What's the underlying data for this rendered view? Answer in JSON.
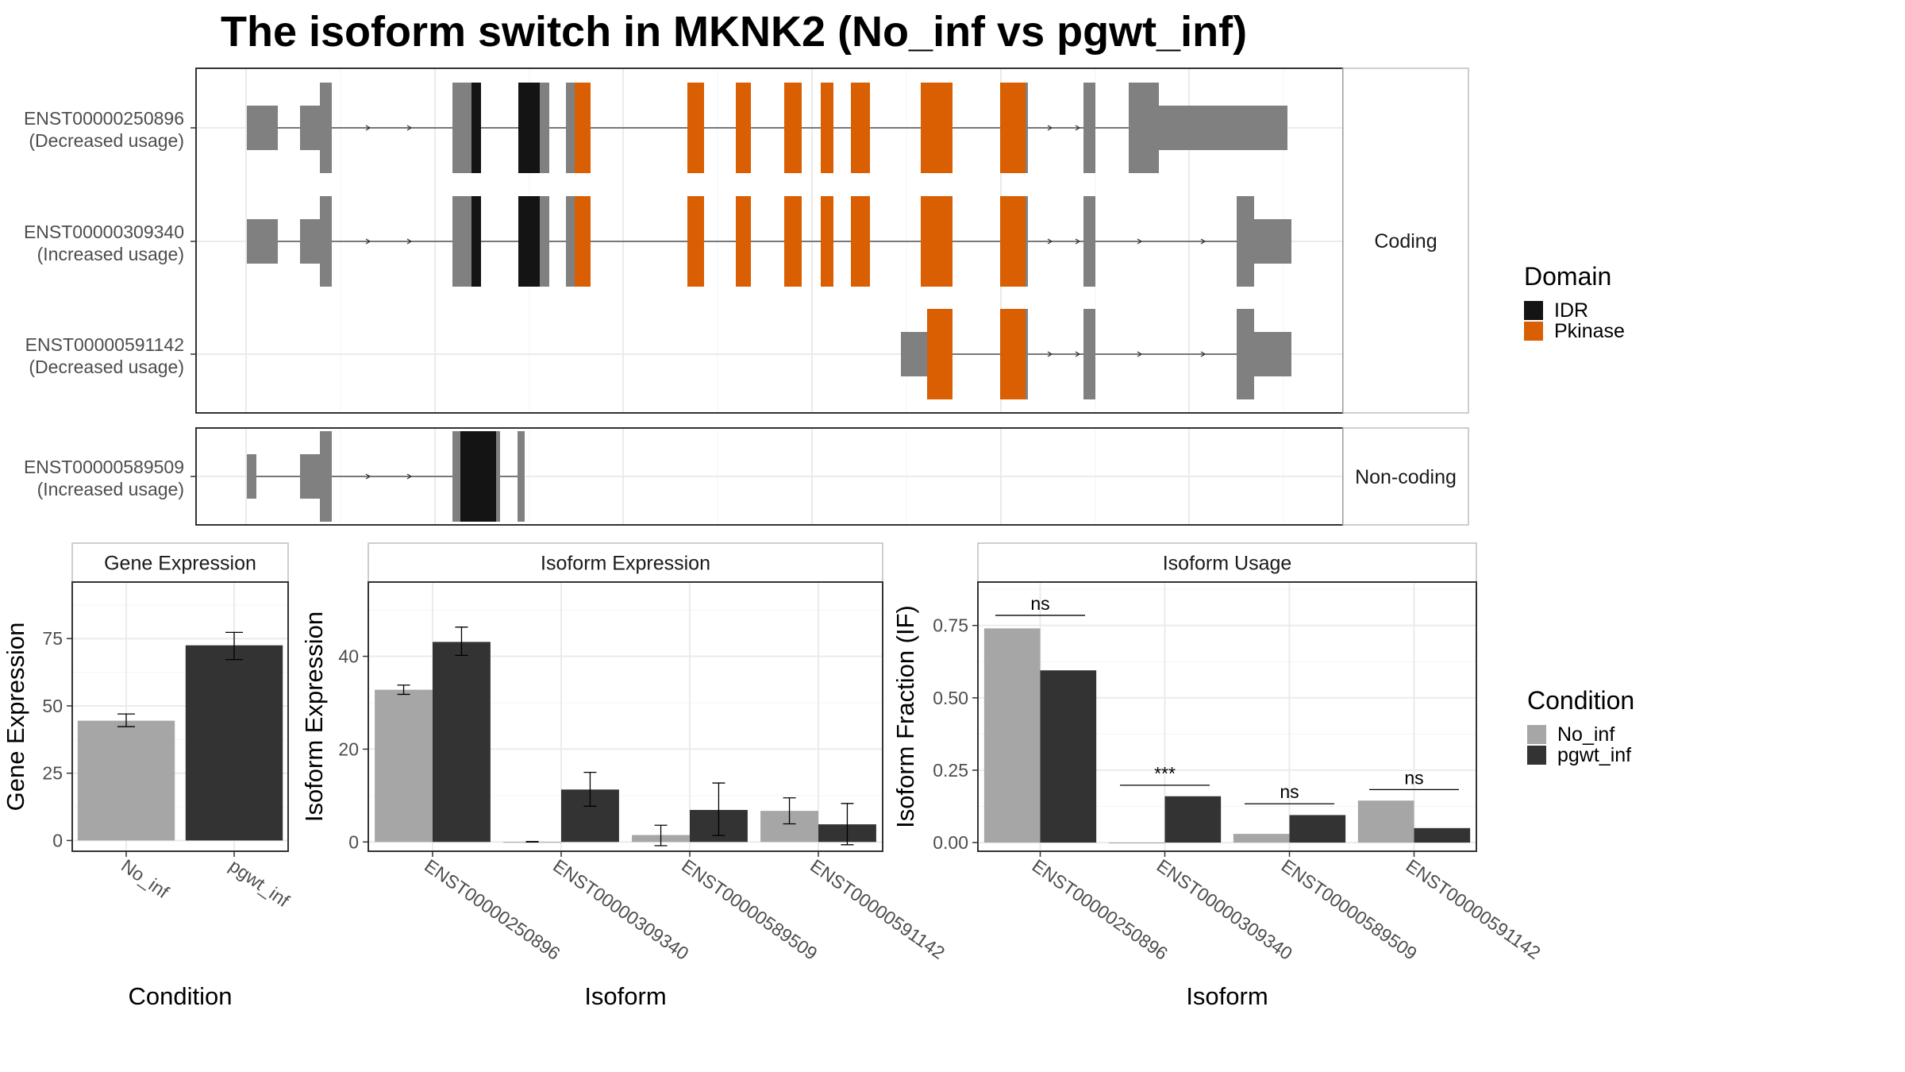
{
  "figure": {
    "title": "The isoform switch in MKNK2 (No_inf vs pgwt_inf)",
    "colors": {
      "exon": "#808080",
      "IDR": "#141414",
      "Pkinase": "#d95f02",
      "No_inf": "#a6a6a6",
      "pgwt_inf": "#333333",
      "grid": "#ebebeb",
      "frame": "#333333"
    },
    "facets": [
      {
        "label": "Coding",
        "rows": [
          {
            "id": "ENST00000250896",
            "note": "(Decreased usage)"
          },
          {
            "id": "ENST00000309340",
            "note": "(Increased usage)"
          },
          {
            "id": "ENST00000591142",
            "note": "(Decreased usage)"
          }
        ]
      },
      {
        "label": "Non-coding",
        "rows": [
          {
            "id": "ENST00000589509",
            "note": "(Increased usage)"
          }
        ]
      }
    ],
    "domain_legend": {
      "title": "Domain",
      "items": [
        "IDR",
        "Pkinase"
      ]
    },
    "condition_legend": {
      "title": "Condition",
      "items": [
        "No_inf",
        "pgwt_inf"
      ]
    }
  },
  "chart_data": [
    {
      "type": "bar",
      "panel": "Gene Expression",
      "xlabel": "Condition",
      "ylabel": "Gene Expression",
      "categories": [
        "No_inf",
        "pgwt_inf"
      ],
      "values": [
        44.5,
        72.5
      ],
      "error_low": [
        42.3,
        67.2
      ],
      "error_high": [
        47.0,
        77.3
      ],
      "ylim": [
        -4,
        96
      ],
      "yticks": [
        0,
        25,
        50,
        75
      ]
    },
    {
      "type": "bar",
      "panel": "Isoform Expression",
      "xlabel": "Isoform",
      "ylabel": "Isoform Expression",
      "categories": [
        "ENST00000250896",
        "ENST00000309340",
        "ENST00000589509",
        "ENST00000591142"
      ],
      "series": [
        {
          "name": "No_inf",
          "values": [
            32.8,
            0.0,
            1.5,
            6.7
          ],
          "error_low": [
            31.8,
            0.0,
            -0.8,
            3.9
          ],
          "error_high": [
            33.8,
            0.1,
            3.6,
            9.5
          ]
        },
        {
          "name": "pgwt_inf",
          "values": [
            43.1,
            11.3,
            6.9,
            3.8
          ],
          "error_low": [
            40.2,
            7.7,
            1.4,
            -0.6
          ],
          "error_high": [
            46.3,
            15.0,
            12.7,
            8.3
          ]
        }
      ],
      "ylim": [
        -2,
        56
      ],
      "yticks": [
        0,
        20,
        40
      ]
    },
    {
      "type": "bar",
      "panel": "Isoform Usage",
      "xlabel": "Isoform",
      "ylabel": "Isoform Fraction (IF)",
      "categories": [
        "ENST00000250896",
        "ENST00000309340",
        "ENST00000589509",
        "ENST00000591142"
      ],
      "series": [
        {
          "name": "No_inf",
          "values": [
            0.74,
            0.0,
            0.03,
            0.145
          ]
        },
        {
          "name": "pgwt_inf",
          "values": [
            0.595,
            0.16,
            0.095,
            0.05
          ]
        }
      ],
      "significance": [
        "ns",
        "***",
        "ns",
        "ns"
      ],
      "significance_y": [
        0.785,
        0.198,
        0.134,
        0.183
      ],
      "ylim": [
        -0.03,
        0.9
      ],
      "yticks": [
        0.0,
        0.25,
        0.5,
        0.75
      ],
      "ytick_labels": [
        "0.00",
        "0.25",
        "0.50",
        "0.75"
      ]
    }
  ]
}
